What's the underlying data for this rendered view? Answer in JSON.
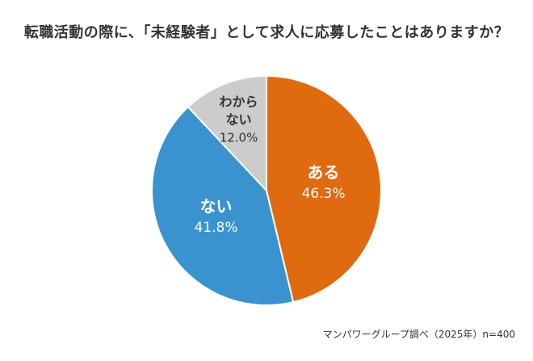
{
  "chart_data": {
    "type": "pie",
    "title": "転職活動の際に、「未経験者」として求人に応募したことはありますか？",
    "slices": [
      {
        "label_lines": [
          "ある"
        ],
        "value": 46.3,
        "value_label": "46.3%",
        "color": "#E06A10",
        "text_color": "#ffffff"
      },
      {
        "label_lines": [
          "ない"
        ],
        "value": 41.8,
        "value_label": "41.8%",
        "color": "#3A93CF",
        "text_color": "#ffffff"
      },
      {
        "label_lines": [
          "わから",
          "ない"
        ],
        "value": 12.0,
        "value_label": "12.0%",
        "color": "#CCCCCC",
        "text_color": "#333333"
      }
    ],
    "start_angle_deg": 0,
    "direction": "clockwise",
    "source": "マンパワーグループ調べ（2025年）n=400"
  }
}
